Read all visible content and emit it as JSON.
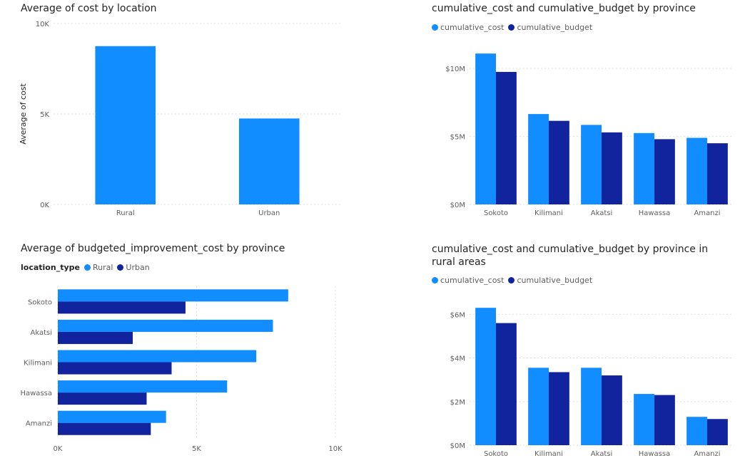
{
  "colors": {
    "rural": "#118DFF",
    "urban": "#12239E",
    "grid": "#E1DFDD",
    "axis_text": "#605E5C"
  },
  "chart_data": [
    {
      "id": "c1",
      "type": "bar",
      "title": "Average of cost by location",
      "ylabel": "Average of cost",
      "categories": [
        "Rural",
        "Urban"
      ],
      "series": [
        {
          "values": [
            8750,
            4750
          ]
        }
      ],
      "ylim": [
        0,
        10000
      ],
      "ticks": [
        {
          "v": 0,
          "label": "0K"
        },
        {
          "v": 5000,
          "label": "5K"
        },
        {
          "v": 10000,
          "label": "10K"
        }
      ],
      "grid": true
    },
    {
      "id": "c2",
      "type": "bar",
      "title": "cumulative_cost and cumulative_budget by province",
      "categories": [
        "Sokoto",
        "Kilimani",
        "Akatsi",
        "Hawassa",
        "Amanzi"
      ],
      "series": [
        {
          "name": "cumulative_cost",
          "values": [
            11100000,
            6650000,
            5850000,
            5250000,
            4900000
          ]
        },
        {
          "name": "cumulative_budget",
          "values": [
            9750000,
            6150000,
            5300000,
            4800000,
            4500000
          ]
        }
      ],
      "ylim": [
        0,
        12000000
      ],
      "ticks": [
        {
          "v": 0,
          "label": "$0M"
        },
        {
          "v": 5000000,
          "label": "$5M"
        },
        {
          "v": 10000000,
          "label": "$10M"
        }
      ],
      "legend": "top-left",
      "grid": true
    },
    {
      "id": "c3",
      "type": "bar",
      "orientation": "horizontal",
      "title": "Average of budgeted_improvement_cost by province",
      "legend_title": "location_type",
      "categories": [
        "Sokoto",
        "Akatsi",
        "Kilimani",
        "Hawassa",
        "Amanzi"
      ],
      "series": [
        {
          "name": "Rural",
          "values": [
            8300,
            7750,
            7150,
            6100,
            3900
          ]
        },
        {
          "name": "Urban",
          "values": [
            4600,
            2700,
            4100,
            3200,
            3350
          ]
        }
      ],
      "xlim": [
        0,
        10000
      ],
      "ticks": [
        {
          "v": 0,
          "label": "0K"
        },
        {
          "v": 5000,
          "label": "5K"
        },
        {
          "v": 10000,
          "label": "10K"
        }
      ],
      "legend": "top-left",
      "grid": true
    },
    {
      "id": "c4",
      "type": "bar",
      "title": "cumulative_cost and cumulative_budget by province in rural areas",
      "categories": [
        "Sokoto",
        "Kilimani",
        "Akatsi",
        "Hawassa",
        "Amanzi"
      ],
      "series": [
        {
          "name": "cumulative_cost",
          "values": [
            6300000,
            3550000,
            3550000,
            2350000,
            1300000
          ]
        },
        {
          "name": "cumulative_budget",
          "values": [
            5600000,
            3350000,
            3200000,
            2300000,
            1200000
          ]
        }
      ],
      "ylim": [
        0,
        6500000
      ],
      "ticks": [
        {
          "v": 0,
          "label": "$0M"
        },
        {
          "v": 2000000,
          "label": "$2M"
        },
        {
          "v": 4000000,
          "label": "$4M"
        },
        {
          "v": 6000000,
          "label": "$6M"
        }
      ],
      "legend": "top-left",
      "grid": true
    }
  ]
}
